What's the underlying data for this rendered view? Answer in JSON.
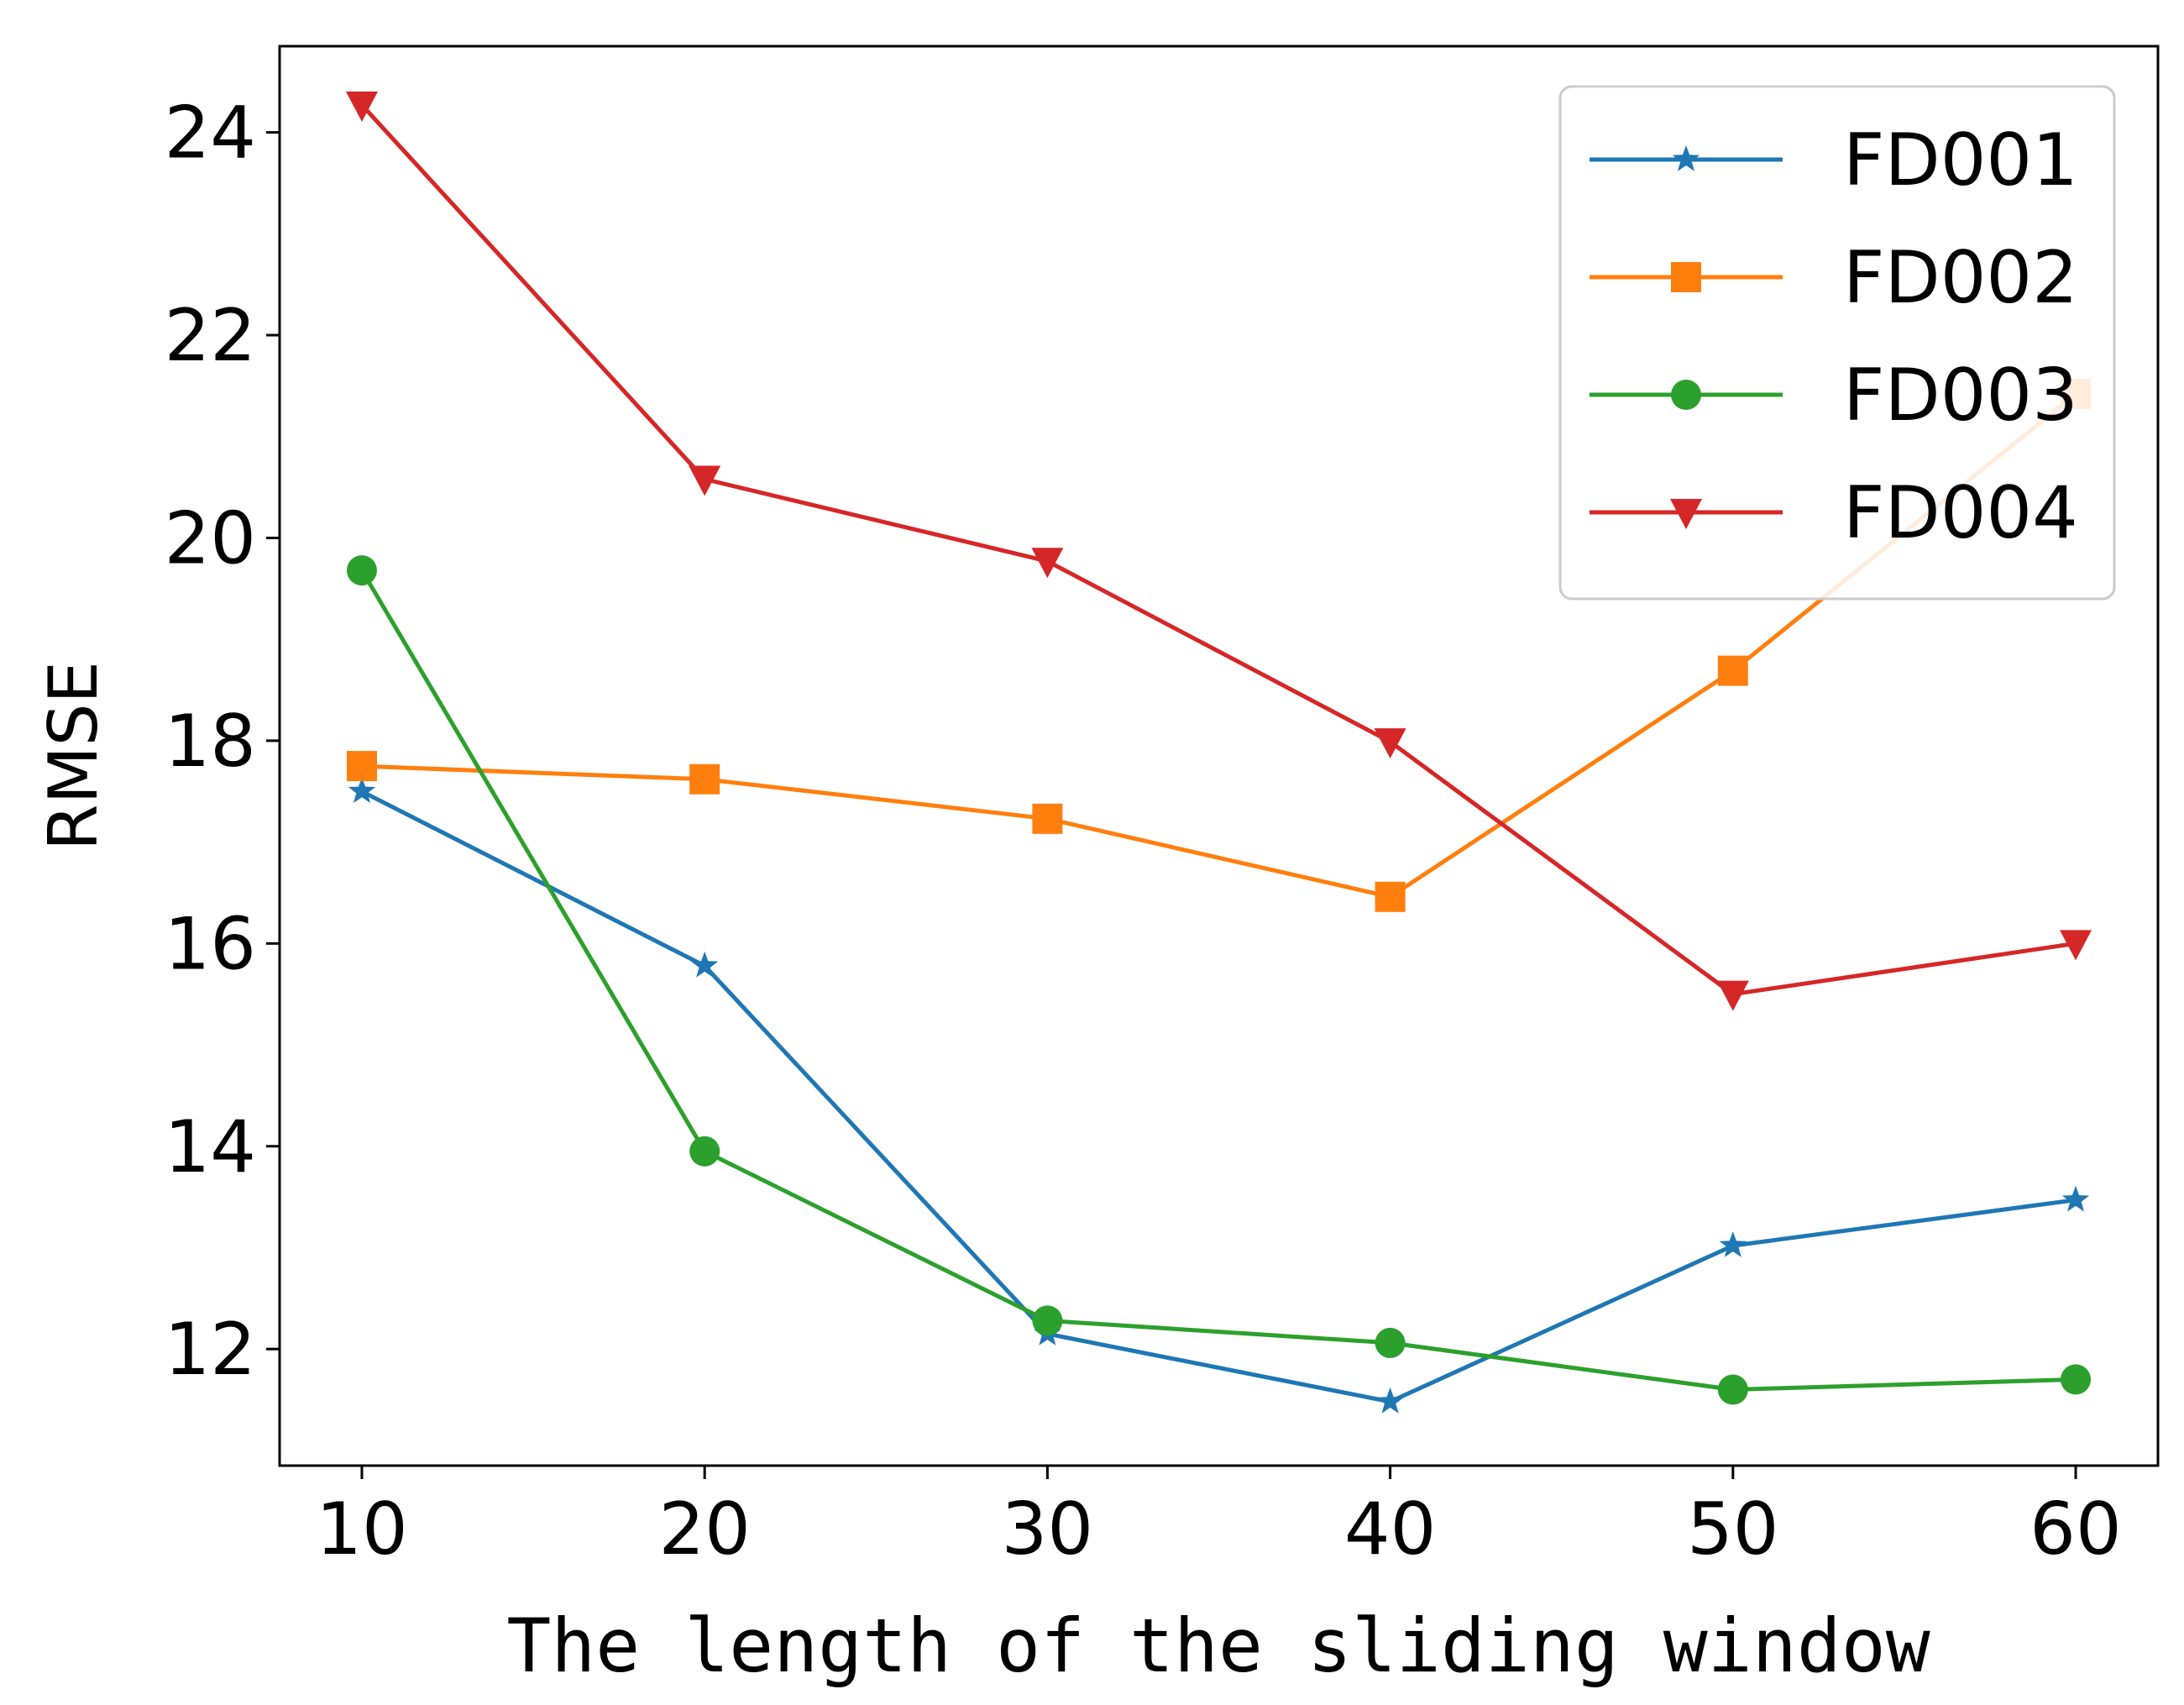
{
  "chart_data": {
    "type": "line",
    "title": "",
    "xlabel": "The length of the sliding window",
    "ylabel": "RMSE",
    "x": [
      10,
      20,
      30,
      40,
      50,
      60
    ],
    "xticks": [
      "10",
      "20",
      "30",
      "40",
      "50",
      "60"
    ],
    "yticks": [
      "12",
      "14",
      "16",
      "18",
      "20",
      "22",
      "24"
    ],
    "ytick_values": [
      12,
      14,
      16,
      18,
      20,
      22,
      24
    ],
    "xlim": [
      7.6,
      62.4
    ],
    "ylim": [
      10.85,
      24.85
    ],
    "grid": false,
    "legend_position": "top-right",
    "series": [
      {
        "name": "FD001",
        "color": "#1f77b4",
        "marker": "star",
        "values": [
          17.5,
          15.78,
          12.15,
          11.48,
          13.02,
          13.47
        ]
      },
      {
        "name": "FD002",
        "color": "#ff7f0e",
        "marker": "square",
        "values": [
          17.75,
          17.62,
          17.23,
          16.46,
          18.69,
          21.42
        ]
      },
      {
        "name": "FD003",
        "color": "#2ca02c",
        "marker": "circle",
        "values": [
          19.68,
          13.95,
          12.28,
          12.06,
          11.6,
          11.7
        ]
      },
      {
        "name": "FD004",
        "color": "#d62728",
        "marker": "triangle-down",
        "values": [
          24.27,
          20.58,
          19.77,
          17.99,
          15.5,
          16.0
        ]
      }
    ]
  }
}
